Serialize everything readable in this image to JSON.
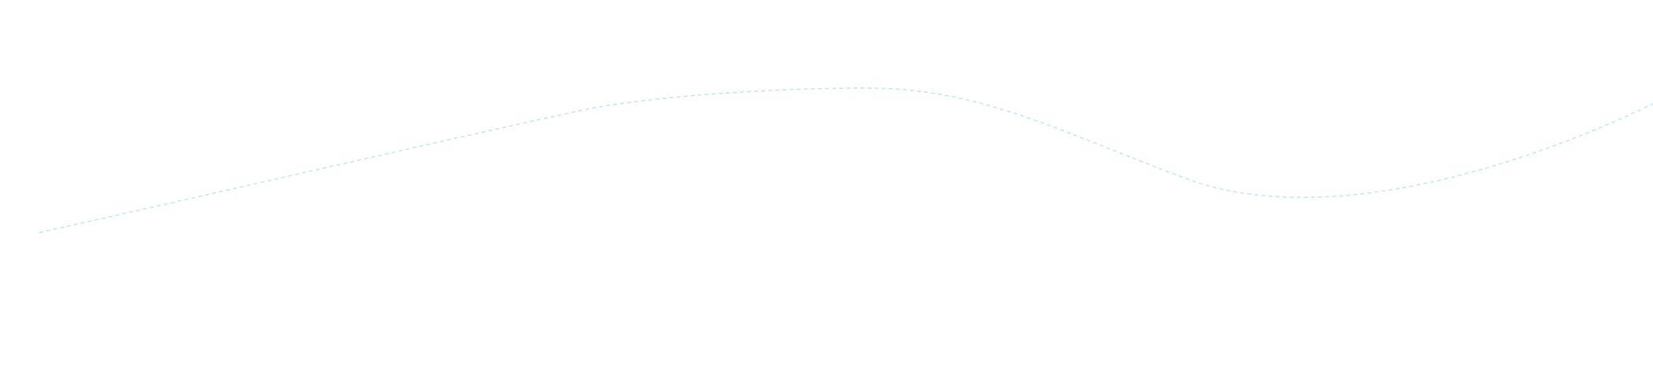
{
  "decoration": {
    "line_color": "#bfe5fa",
    "line_style": "dashed",
    "background": "#ffffff"
  }
}
